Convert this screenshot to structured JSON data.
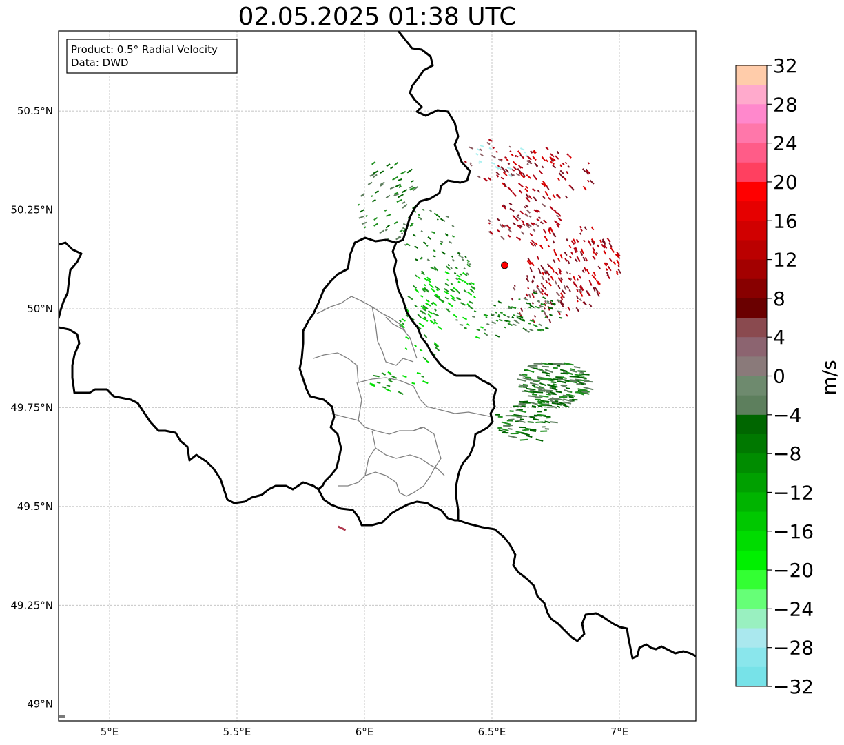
{
  "title": "02.05.2025 01:38 UTC",
  "info_box": {
    "product": "Product: 0.5° Radial Velocity",
    "source": "Data: DWD"
  },
  "map": {
    "lon_range": [
      4.8,
      7.3
    ],
    "lat_range": [
      48.95,
      50.7
    ],
    "lon_ticks": [
      {
        "value": 5.0,
        "label": "5°E"
      },
      {
        "value": 5.5,
        "label": "5.5°E"
      },
      {
        "value": 6.0,
        "label": "6°E"
      },
      {
        "value": 6.5,
        "label": "6.5°E"
      },
      {
        "value": 7.0,
        "label": "7°E"
      }
    ],
    "lat_ticks": [
      {
        "value": 50.5,
        "label": "50.5°N"
      },
      {
        "value": 50.25,
        "label": "50.25°N"
      },
      {
        "value": 50.0,
        "label": "50°N"
      },
      {
        "value": 49.75,
        "label": "49.75°N"
      },
      {
        "value": 49.5,
        "label": "49.5°N"
      },
      {
        "value": 49.25,
        "label": "49.25°N"
      },
      {
        "value": 49.0,
        "label": "49°N"
      }
    ],
    "gridlines": true,
    "radar_site": {
      "lon": 6.55,
      "lat": 50.11,
      "color": "#ff0000"
    }
  },
  "colorbar": {
    "unit": "m/s",
    "min": -32,
    "max": 32,
    "tick_values": [
      32,
      28,
      24,
      20,
      16,
      12,
      8,
      4,
      0,
      -4,
      -8,
      -12,
      -16,
      -20,
      -24,
      -28,
      -32
    ],
    "tick_labels": [
      "32",
      "28",
      "24",
      "20",
      "16",
      "12",
      "8",
      "4",
      "0",
      "−4",
      "−8",
      "−12",
      "−16",
      "−20",
      "−24",
      "−28",
      "−32"
    ],
    "colors_top_to_bottom": [
      "#ffccaa",
      "#ffaacc",
      "#ff88cc",
      "#ff77aa",
      "#ff5c88",
      "#ff4060",
      "#ff0000",
      "#e60000",
      "#d10000",
      "#bb0000",
      "#a30000",
      "#880000",
      "#6a0000",
      "#8a4a4f",
      "#8c6470",
      "#8a7a7a",
      "#6e8a6e",
      "#5d7f5d",
      "#006600",
      "#007800",
      "#008c00",
      "#00a000",
      "#00b400",
      "#00c800",
      "#00dc00",
      "#00f000",
      "#33ff33",
      "#66ff77",
      "#99f0c0",
      "#aae8ee",
      "#8ae6ec",
      "#77e2e8"
    ]
  },
  "palette": {
    "receding_strong": "#d80000",
    "receding_mid": "#b00010",
    "receding_dark": "#7a1020",
    "near_zero_red": "#8a5a60",
    "near_zero_green": "#5f7f5f",
    "approaching_dark": "#006400",
    "approaching_mid": "#1f8f1f",
    "approaching_bright": "#00e000",
    "light_cyan": "#aaf0f0"
  }
}
